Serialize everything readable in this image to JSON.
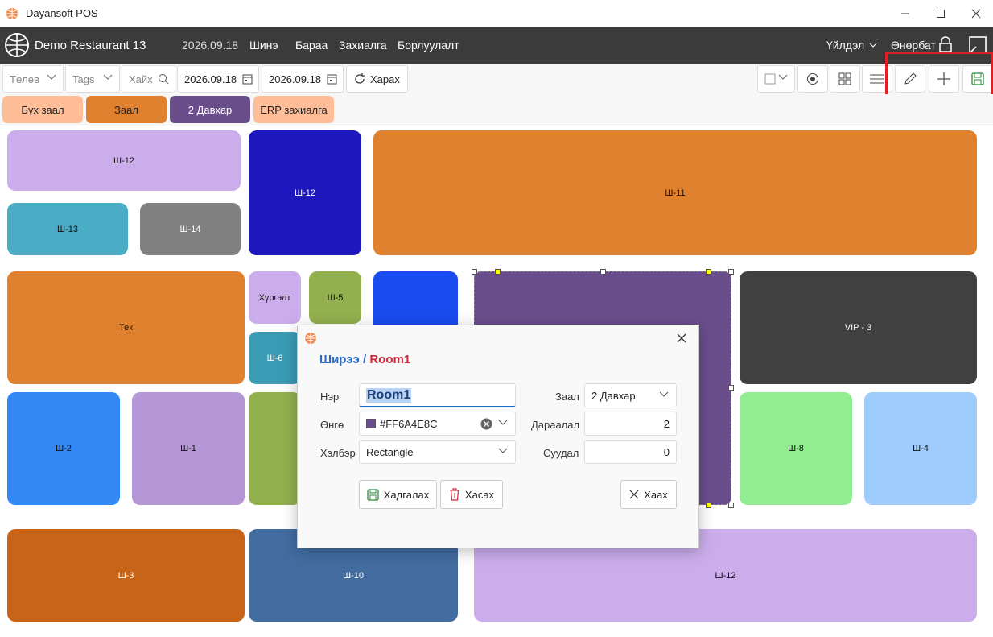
{
  "window": {
    "title": "Dayansoft POS"
  },
  "header": {
    "restaurant": "Demo Restaurant 13",
    "date": "2026.09.18",
    "nav": [
      "Шинэ",
      "Бараа",
      "Захиалга",
      "Борлуулалт"
    ],
    "operations": "Үйлдэл",
    "user": "Өнөрбат"
  },
  "toolbar": {
    "payment_placeholder": "Төлөв",
    "tags_placeholder": "Tags",
    "search_placeholder": "Хайх",
    "date_from": "2026.09.18",
    "date_to": "2026.09.18",
    "refresh_label": "Харах"
  },
  "tabs": [
    {
      "label": "Бүх заал",
      "color": "#FFBE98"
    },
    {
      "label": "Заал",
      "color": "#E0812F"
    },
    {
      "label": "2 Давхар",
      "color": "#6A4E8C"
    },
    {
      "label": "ERP захиалга",
      "color": "#FFBE98"
    }
  ],
  "tables": [
    {
      "label": "Ш-12",
      "color": "#CBADEB"
    },
    {
      "label": "Ш-13",
      "color": "#4BACC6"
    },
    {
      "label": "Ш-14",
      "color": "#808080"
    },
    {
      "label": "Ш-12",
      "color": "#1C18BD"
    },
    {
      "label": "Ш-11",
      "color": "#E0812F"
    },
    {
      "label": "Тек",
      "color": "#E0812F"
    },
    {
      "label": "Хүргэлт",
      "color": "#CBADEB"
    },
    {
      "label": "Ш-5",
      "color": "#93B04F"
    },
    {
      "label": "Ш-6",
      "color": "#3A9BB5"
    },
    {
      "label": "",
      "color": "#1A4BEF"
    },
    {
      "label": "",
      "color": "#6A4E8C"
    },
    {
      "label": "VIP - 3",
      "color": "#404040"
    },
    {
      "label": "Ш-2",
      "color": "#3388F5"
    },
    {
      "label": "Ш-1",
      "color": "#B596D6"
    },
    {
      "label": "",
      "color": "#93B04F"
    },
    {
      "label": "Ш-8",
      "color": "#90EE90"
    },
    {
      "label": "Ш-4",
      "color": "#9ECCFC"
    },
    {
      "label": "Ш-3",
      "color": "#C86418"
    },
    {
      "label": "Ш-10",
      "color": "#436DA0"
    },
    {
      "label": "Ш-12",
      "color": "#CBADEB"
    }
  ],
  "dialog": {
    "title_prefix": "Ширээ /",
    "title_name": "Room1",
    "name_label": "Нэр",
    "name_value": "Room1",
    "color_label": "Өнгө",
    "color_value": "#FF6A4E8C",
    "shape_label": "Хэлбэр",
    "shape_value": "Rectangle",
    "hall_label": "Заал",
    "hall_value": "2 Давхар",
    "order_label": "Дараалал",
    "order_value": "2",
    "seats_label": "Суудал",
    "seats_value": "0",
    "save_label": "Хадгалах",
    "delete_label": "Хасах",
    "close_label": "Хаах"
  }
}
